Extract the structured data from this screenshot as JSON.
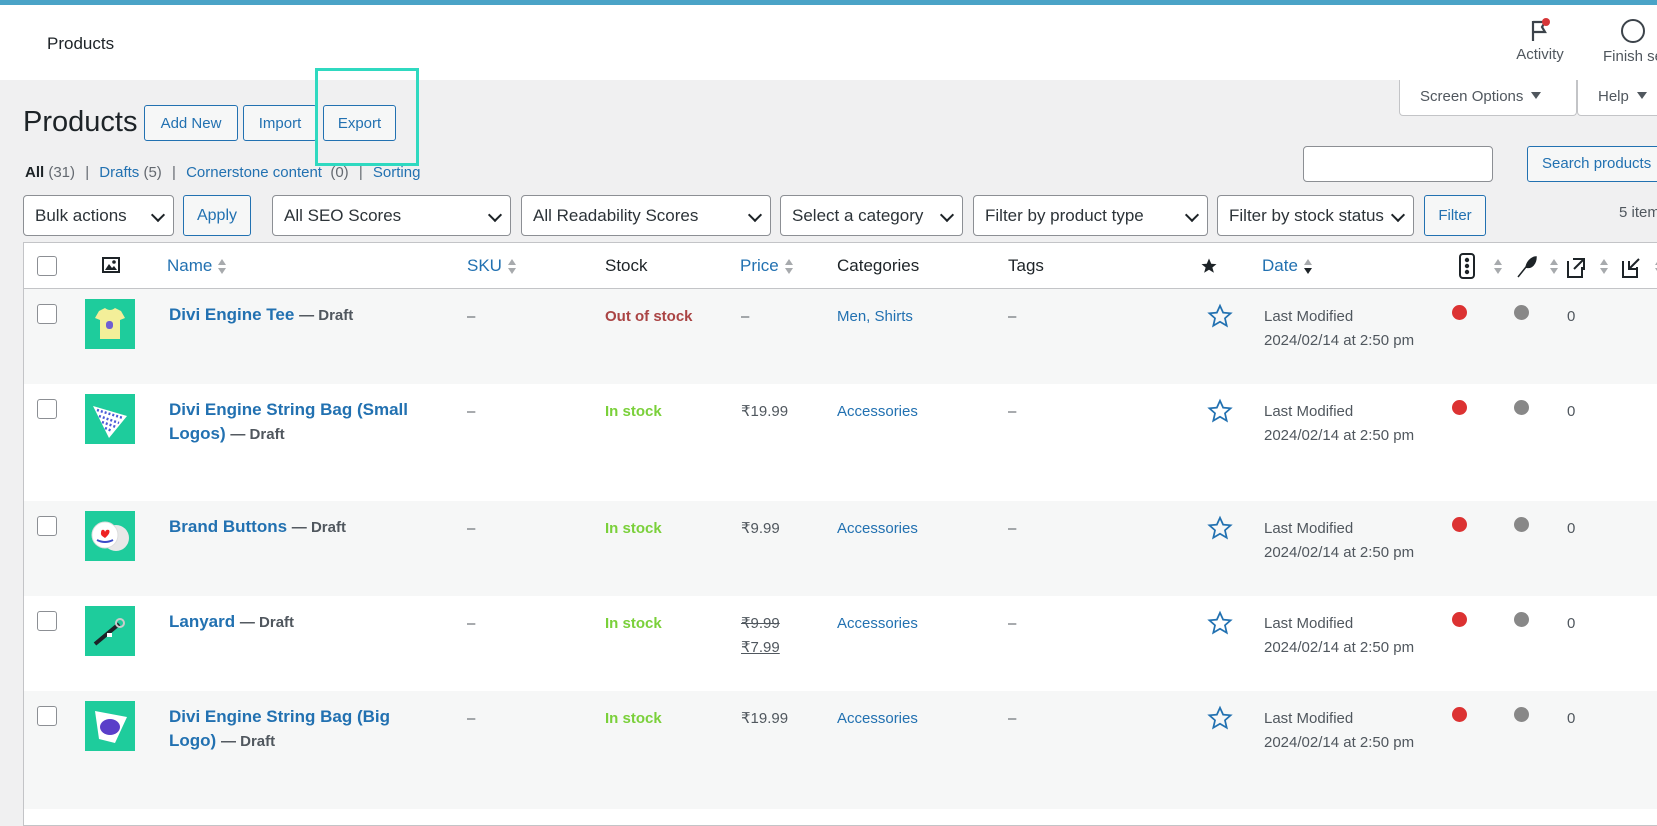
{
  "topbar": {
    "title": "Products",
    "activity_label": "Activity",
    "finish_label": "Finish se"
  },
  "screen_options": {
    "label": "Screen Options",
    "help_label": "Help"
  },
  "page": {
    "title": "Products",
    "add_new": "Add New",
    "import": "Import",
    "export": "Export"
  },
  "subsubsub": {
    "all_label": "All",
    "all_count": "(31)",
    "drafts_label": "Drafts",
    "drafts_count": "(5)",
    "cornerstone_label": "Cornerstone content",
    "cornerstone_count": "(0)",
    "sorting_label": "Sorting",
    "separator": "|"
  },
  "search": {
    "value": "",
    "button": "Search products"
  },
  "filters": {
    "bulk_actions": "Bulk actions",
    "apply": "Apply",
    "seo": "All SEO Scores",
    "readability": "All Readability Scores",
    "category": "Select a category",
    "product_type": "Filter by product type",
    "stock_status": "Filter by stock status",
    "filter_button": "Filter",
    "items_count": "5 item"
  },
  "columns": {
    "name": "Name",
    "sku": "SKU",
    "stock": "Stock",
    "price": "Price",
    "categories": "Categories",
    "tags": "Tags",
    "date": "Date"
  },
  "accent_colors": {
    "link": "#2271b1",
    "in_stock": "#7ad03a",
    "out_of_stock": "#aa4444",
    "seo_red": "#dc3232",
    "readability_grey": "#888888",
    "highlight": "#2fd9c0"
  },
  "rows": [
    {
      "name": "Divi Engine Tee",
      "status": "— Draft",
      "sku": "–",
      "stock": "Out of stock",
      "price": "–",
      "price_old": "",
      "price_new": "",
      "categories": "Men, Shirts",
      "tags": "–",
      "date_label": "Last Modified",
      "date_value": "2024/02/14 at 2:50 pm",
      "links": "0",
      "thumb_icon": "tshirt-thumbnail"
    },
    {
      "name": "Divi Engine String Bag (Small Logos)",
      "status": "— Draft",
      "sku": "–",
      "stock": "In stock",
      "price": "₹19.99",
      "price_old": "",
      "price_new": "",
      "categories": "Accessories",
      "tags": "–",
      "date_label": "Last Modified",
      "date_value": "2024/02/14 at 2:50 pm",
      "links": "0",
      "thumb_icon": "string-bag-thumbnail"
    },
    {
      "name": "Brand Buttons",
      "status": "— Draft",
      "sku": "–",
      "stock": "In stock",
      "price": "₹9.99",
      "price_old": "",
      "price_new": "",
      "categories": "Accessories",
      "tags": "–",
      "date_label": "Last Modified",
      "date_value": "2024/02/14 at 2:50 pm",
      "links": "0",
      "thumb_icon": "buttons-thumbnail"
    },
    {
      "name": "Lanyard",
      "status": "— Draft",
      "sku": "–",
      "stock": "In stock",
      "price": "",
      "price_old": "₹9.99",
      "price_new": "₹7.99",
      "categories": "Accessories",
      "tags": "–",
      "date_label": "Last Modified",
      "date_value": "2024/02/14 at 2:50 pm",
      "links": "0",
      "thumb_icon": "lanyard-thumbnail"
    },
    {
      "name": "Divi Engine String Bag (Big Logo)",
      "status": "— Draft",
      "sku": "–",
      "stock": "In stock",
      "price": "₹19.99",
      "price_old": "",
      "price_new": "",
      "categories": "Accessories",
      "tags": "–",
      "date_label": "Last Modified",
      "date_value": "2024/02/14 at 2:50 pm",
      "links": "0",
      "thumb_icon": "big-logo-bag-thumbnail"
    }
  ]
}
